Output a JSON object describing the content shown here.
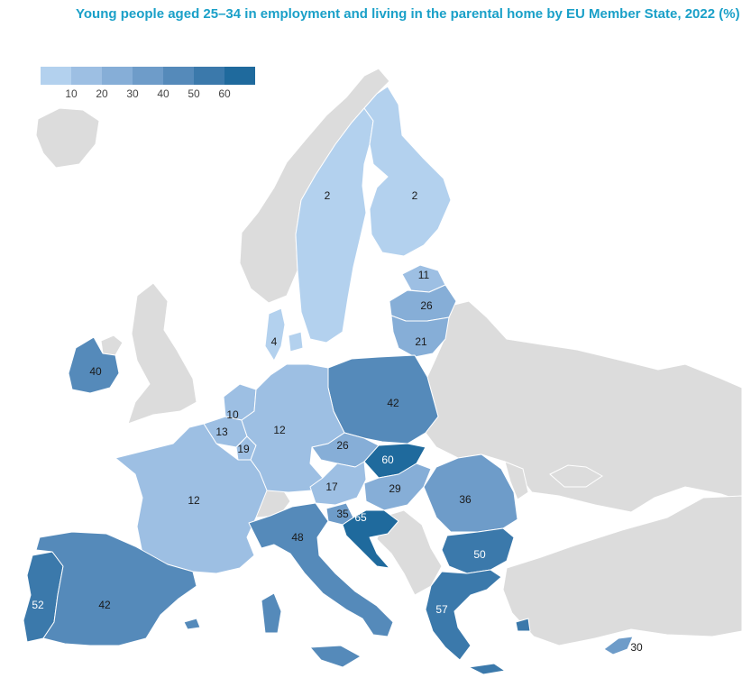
{
  "title": "Young people aged 25–34 in employment and living in the parental home by EU Member State, 2022 (%)",
  "legend": {
    "ticks": [
      "10",
      "20",
      "30",
      "40",
      "50",
      "60"
    ],
    "colors": [
      "#b3d1ee",
      "#9dbfe3",
      "#86aed7",
      "#6e9cc9",
      "#558aba",
      "#3b79ab",
      "#1f6a9d"
    ]
  },
  "countries": [
    {
      "name": "Sweden",
      "value": "2"
    },
    {
      "name": "Finland",
      "value": "2"
    },
    {
      "name": "Estonia",
      "value": "11"
    },
    {
      "name": "Latvia",
      "value": "26"
    },
    {
      "name": "Lithuania",
      "value": "21"
    },
    {
      "name": "Denmark",
      "value": "4"
    },
    {
      "name": "Ireland",
      "value": "40"
    },
    {
      "name": "Poland",
      "value": "42"
    },
    {
      "name": "Netherlands",
      "value": "10"
    },
    {
      "name": "Belgium",
      "value": "13"
    },
    {
      "name": "Luxembourg",
      "value": "19"
    },
    {
      "name": "Germany",
      "value": "12"
    },
    {
      "name": "Czechia",
      "value": "26"
    },
    {
      "name": "Slovakia",
      "value": "60"
    },
    {
      "name": "Austria",
      "value": "17"
    },
    {
      "name": "Hungary",
      "value": "29"
    },
    {
      "name": "Romania",
      "value": "36"
    },
    {
      "name": "France",
      "value": "12"
    },
    {
      "name": "Slovenia",
      "value": "35"
    },
    {
      "name": "Croatia",
      "value": "65"
    },
    {
      "name": "Italy",
      "value": "48"
    },
    {
      "name": "Bulgaria",
      "value": "50"
    },
    {
      "name": "Portugal",
      "value": "52"
    },
    {
      "name": "Spain",
      "value": "42"
    },
    {
      "name": "Greece",
      "value": "57"
    },
    {
      "name": "Cyprus",
      "value": "30"
    }
  ]
}
